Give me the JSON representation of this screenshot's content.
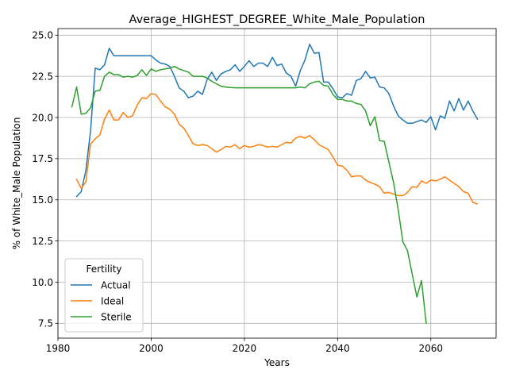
{
  "chart_data": {
    "type": "line",
    "title": "Average_HIGHEST_DEGREE_White_Male_Population",
    "xlabel": "Years",
    "ylabel": "% of White_Male Population",
    "xlim": [
      1980,
      2074
    ],
    "ylim": [
      6.6,
      25.4
    ],
    "x_ticks": [
      1980,
      2000,
      2020,
      2040,
      2060
    ],
    "y_ticks": [
      7.5,
      10.0,
      12.5,
      15.0,
      17.5,
      20.0,
      22.5,
      25.0
    ],
    "y_tick_labels": [
      "7.5",
      "10.0",
      "12.5",
      "15.0",
      "17.5",
      "20.0",
      "22.5",
      "25.0"
    ],
    "grid": true,
    "legend": {
      "title": "Fertility",
      "placement": "lower-left"
    },
    "series": [
      {
        "name": "Actual",
        "color": "#1f77b4",
        "x": [
          1984,
          1985,
          1986,
          1987,
          1988,
          1989,
          1990,
          1991,
          1992,
          1993,
          1994,
          1995,
          1996,
          1997,
          1998,
          1999,
          2000,
          2001,
          2002,
          2003,
          2004,
          2005,
          2006,
          2007,
          2008,
          2009,
          2010,
          2011,
          2012,
          2013,
          2014,
          2015,
          2016,
          2017,
          2018,
          2019,
          2020,
          2021,
          2022,
          2023,
          2024,
          2025,
          2026,
          2027,
          2028,
          2029,
          2030,
          2031,
          2032,
          2033,
          2034,
          2035,
          2036,
          2037,
          2038,
          2039,
          2040,
          2041,
          2042,
          2043,
          2044,
          2045,
          2046,
          2047,
          2048,
          2049,
          2050,
          2051,
          2052,
          2053,
          2054,
          2055,
          2056,
          2057,
          2058,
          2059,
          2060,
          2061,
          2062,
          2063,
          2064,
          2065,
          2066,
          2067,
          2068,
          2069,
          2070
        ],
        "y": [
          15.2,
          15.5,
          16.8,
          19.2,
          23.0,
          22.9,
          23.2,
          24.2,
          23.75,
          23.75,
          23.75,
          23.75,
          23.75,
          23.75,
          23.75,
          23.75,
          23.75,
          23.5,
          23.3,
          23.25,
          23.1,
          22.5,
          21.8,
          21.6,
          21.2,
          21.3,
          21.6,
          21.4,
          22.3,
          22.75,
          22.25,
          22.65,
          22.8,
          22.9,
          23.2,
          22.8,
          23.1,
          23.45,
          23.1,
          23.3,
          23.3,
          23.1,
          23.65,
          23.15,
          23.25,
          22.7,
          22.5,
          21.9,
          22.85,
          23.5,
          24.45,
          23.9,
          23.95,
          22.15,
          22.15,
          21.75,
          21.25,
          21.2,
          21.45,
          21.35,
          22.25,
          22.35,
          22.8,
          22.4,
          22.45,
          21.85,
          21.8,
          21.45,
          20.7,
          20.1,
          19.85,
          19.65,
          19.65,
          19.75,
          19.85,
          19.7,
          20.05,
          19.25,
          20.1,
          19.95,
          21.0,
          20.4,
          21.15,
          20.45,
          21.0,
          20.4,
          19.9
        ]
      },
      {
        "name": "Ideal",
        "color": "#ff7f0e",
        "x": [
          1984,
          1985,
          1986,
          1987,
          1988,
          1989,
          1990,
          1991,
          1992,
          1993,
          1994,
          1995,
          1996,
          1997,
          1998,
          1999,
          2000,
          2001,
          2002,
          2003,
          2004,
          2005,
          2006,
          2007,
          2008,
          2009,
          2010,
          2011,
          2012,
          2013,
          2014,
          2015,
          2016,
          2017,
          2018,
          2019,
          2020,
          2021,
          2022,
          2023,
          2024,
          2025,
          2026,
          2027,
          2028,
          2029,
          2030,
          2031,
          2032,
          2033,
          2034,
          2035,
          2036,
          2037,
          2038,
          2039,
          2040,
          2041,
          2042,
          2043,
          2044,
          2045,
          2046,
          2047,
          2048,
          2049,
          2050,
          2051,
          2052,
          2053,
          2054,
          2055,
          2056,
          2057,
          2058,
          2059,
          2060,
          2061,
          2062,
          2063,
          2064,
          2065,
          2066,
          2067,
          2068,
          2069,
          2070
        ],
        "y": [
          16.25,
          15.7,
          16.1,
          18.4,
          18.7,
          18.95,
          19.9,
          20.45,
          19.85,
          19.85,
          20.3,
          20.0,
          20.1,
          20.75,
          21.2,
          21.15,
          21.45,
          21.4,
          21.0,
          20.65,
          20.5,
          20.2,
          19.6,
          19.35,
          18.9,
          18.4,
          18.3,
          18.35,
          18.3,
          18.1,
          17.9,
          18.05,
          18.25,
          18.2,
          18.35,
          18.1,
          18.3,
          18.2,
          18.25,
          18.35,
          18.3,
          18.2,
          18.25,
          18.2,
          18.35,
          18.5,
          18.45,
          18.75,
          18.85,
          18.75,
          18.9,
          18.65,
          18.35,
          18.2,
          18.05,
          17.6,
          17.1,
          17.05,
          16.8,
          16.4,
          16.45,
          16.45,
          16.2,
          16.05,
          15.95,
          15.8,
          15.4,
          15.45,
          15.35,
          15.25,
          15.25,
          15.45,
          15.8,
          15.75,
          16.15,
          16.0,
          16.2,
          16.15,
          16.25,
          16.4,
          16.2,
          16.0,
          15.8,
          15.5,
          15.4,
          14.85,
          14.75
        ]
      },
      {
        "name": "Sterile",
        "color": "#2ca02c",
        "x": [
          1983,
          1984,
          1985,
          1986,
          1987,
          1988,
          1989,
          1990,
          1991,
          1992,
          1993,
          1994,
          1995,
          1996,
          1997,
          1998,
          1999,
          2000,
          2001,
          2002,
          2003,
          2004,
          2005,
          2006,
          2007,
          2008,
          2009,
          2010,
          2011,
          2012,
          2013,
          2014,
          2015,
          2016,
          2017,
          2018,
          2019,
          2020,
          2021,
          2022,
          2023,
          2024,
          2025,
          2026,
          2027,
          2028,
          2029,
          2030,
          2031,
          2032,
          2033,
          2034,
          2035,
          2036,
          2037,
          2038,
          2039,
          2040,
          2041,
          2042,
          2043,
          2044,
          2045,
          2046,
          2047,
          2048,
          2049,
          2050,
          2051,
          2052,
          2053,
          2054,
          2055,
          2056,
          2057,
          2058,
          2059
        ],
        "y": [
          20.65,
          21.85,
          20.2,
          20.25,
          20.6,
          21.6,
          21.65,
          22.5,
          22.75,
          22.6,
          22.6,
          22.45,
          22.5,
          22.45,
          22.55,
          22.9,
          22.55,
          22.95,
          22.8,
          22.9,
          22.95,
          23.0,
          23.1,
          22.95,
          22.85,
          22.75,
          22.5,
          22.5,
          22.5,
          22.4,
          22.2,
          22.05,
          21.9,
          21.85,
          21.82,
          21.8,
          21.8,
          21.8,
          21.8,
          21.8,
          21.8,
          21.8,
          21.8,
          21.8,
          21.8,
          21.8,
          21.8,
          21.8,
          21.8,
          21.85,
          21.8,
          22.05,
          22.15,
          22.2,
          21.95,
          21.9,
          21.4,
          21.1,
          21.1,
          21.0,
          21.0,
          20.85,
          20.8,
          20.4,
          19.5,
          20.05,
          18.6,
          18.55,
          17.3,
          16.05,
          14.4,
          12.45,
          11.9,
          10.5,
          9.1,
          10.1,
          7.5
        ]
      }
    ]
  }
}
